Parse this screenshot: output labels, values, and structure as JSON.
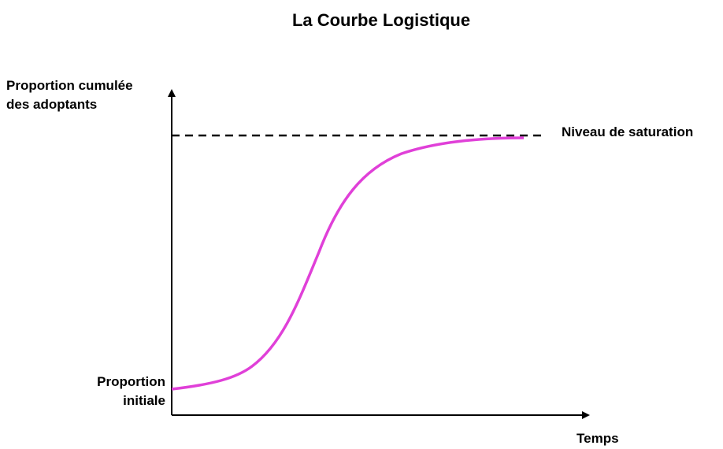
{
  "title": "La Courbe Logistique",
  "axis_labels": {
    "y": [
      "Proportion cumulée",
      "des adoptants"
    ],
    "x": "Temps"
  },
  "annotations": {
    "saturation": "Niveau de saturation",
    "initial": [
      "Proportion",
      "initiale"
    ]
  }
}
